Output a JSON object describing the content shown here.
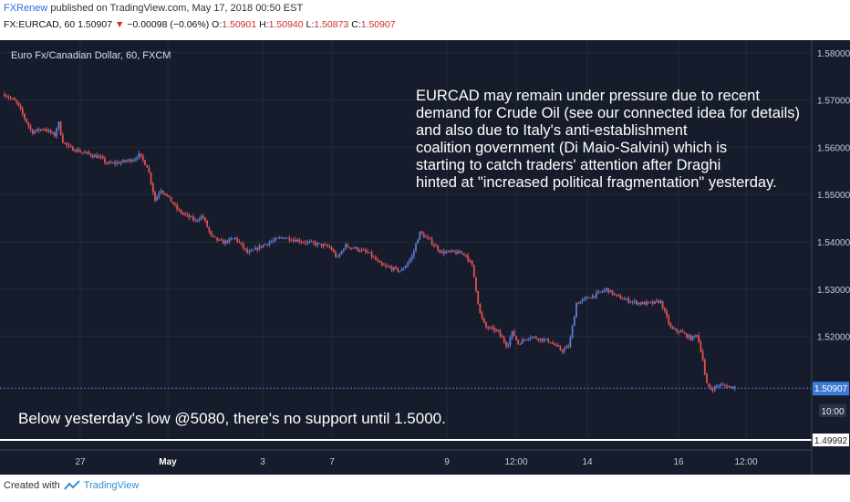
{
  "header": {
    "brand": "FXRenew",
    "published_text": "published on TradingView.com, May 17, 2018 00:50 EST",
    "symbol": "FX:EURCAD, 60",
    "last": "1.50907",
    "change": "−0.00098 (−0.06%)",
    "o_label": "O:",
    "o_value": "1.50901",
    "h_label": "H:",
    "h_value": "1.50940",
    "l_label": "L:",
    "l_value": "1.50873",
    "c_label": "C:",
    "c_value": "1.50907"
  },
  "chart_data": {
    "type": "line",
    "style": "candlestick",
    "title": "Euro Fx/Canadian Dollar, 60, FXCM",
    "xlabel": "",
    "ylabel": "",
    "ylim": [
      1.4985,
      1.5815
    ],
    "y_ticks": [
      "1.58000",
      "1.57000",
      "1.56000",
      "1.55000",
      "1.54000",
      "1.53000",
      "1.52000"
    ],
    "x_ticks": [
      "27",
      "May",
      "3",
      "7",
      "9",
      "12:00",
      "14",
      "16",
      "12:00"
    ],
    "x_ticks_idx": [
      88,
      184,
      288,
      364,
      490,
      566,
      644,
      744,
      818
    ],
    "colors": {
      "background": "#161c2b",
      "up": "#5c7bd6",
      "down": "#e05252",
      "price_line": "#3d7bd8"
    },
    "series": [
      {
        "x": [
          5,
          18,
          35,
          48,
          60,
          64,
          68,
          75,
          90,
          110,
          118,
          132,
          147,
          152,
          162,
          170,
          176,
          182,
          196,
          214,
          222,
          232,
          244,
          258,
          272,
          290,
          310,
          322,
          334,
          348,
          362,
          370,
          378,
          392,
          405,
          418,
          428,
          440,
          452,
          460,
          470,
          484,
          496,
          510,
          518,
          526,
          532,
          545,
          556,
          562,
          568,
          580,
          592,
          602,
          616,
          624,
          632,
          645,
          655,
          665,
          676,
          690,
          703,
          716,
          724,
          736,
          746,
          758,
          764,
          770,
          774,
          780,
          788,
          796,
          808
        ],
        "y": [
          1.5712,
          1.5695,
          1.5632,
          1.564,
          1.5625,
          1.5655,
          1.5615,
          1.56,
          1.559,
          1.5578,
          1.5565,
          1.5568,
          1.5575,
          1.5585,
          1.5558,
          1.5488,
          1.5512,
          1.55,
          1.5465,
          1.5445,
          1.5455,
          1.541,
          1.5398,
          1.5408,
          1.5375,
          1.5395,
          1.541,
          1.5405,
          1.54,
          1.5395,
          1.5388,
          1.5365,
          1.5392,
          1.5385,
          1.5375,
          1.535,
          1.5345,
          1.5338,
          1.537,
          1.542,
          1.5405,
          1.5378,
          1.5378,
          1.5375,
          1.5348,
          1.525,
          1.522,
          1.5212,
          1.518,
          1.521,
          1.5185,
          1.52,
          1.5195,
          1.519,
          1.517,
          1.518,
          1.527,
          1.5282,
          1.529,
          1.53,
          1.5285,
          1.5275,
          1.527,
          1.527,
          1.5275,
          1.5215,
          1.521,
          1.5195,
          1.5205,
          1.516,
          1.51,
          1.5088,
          1.5097,
          1.5095,
          1.5091
        ]
      }
    ],
    "price_label": "1.50907",
    "countdown": "10:00",
    "support_label": "1.49992",
    "support_value": 1.49992
  },
  "annotations": {
    "main_lines": [
      "EURCAD may remain under pressure due to recent",
      "demand for Crude Oil (see our connected idea for details)",
      "and also due to Italy's anti-establishment",
      "coalition government (Di Maio-Salvini) which is",
      "starting to catch traders' attention after Draghi",
      "hinted at \"increased political fragmentation\" yesterday."
    ],
    "bottom_note": "Below yesterday's low @5080, there's no support until 1.5000."
  },
  "footer": {
    "created_with": "Created with",
    "brand": "TradingView"
  }
}
